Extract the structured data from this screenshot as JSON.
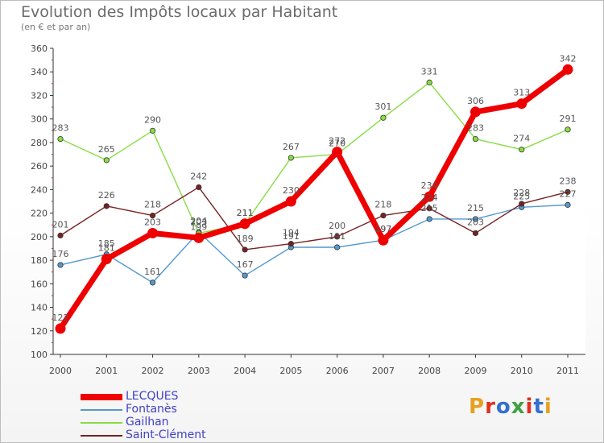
{
  "title": "Evolution des Impôts locaux par Habitant",
  "subtitle": "(en € et par an)",
  "logo": {
    "text": "Proxiti",
    "letter_colors": [
      "#e8a020",
      "#e03020",
      "#3070d0",
      "#40a040",
      "#e03020",
      "#3070d0",
      "#e8a020"
    ]
  },
  "chart_data": {
    "type": "line",
    "title": "Evolution des Impôts locaux par Habitant",
    "subtitle": "(en € et par an)",
    "xlabel": "",
    "ylabel": "",
    "x": [
      "2000",
      "2001",
      "2002",
      "2003",
      "2004",
      "2005",
      "2006",
      "2007",
      "2008",
      "2009",
      "2010",
      "2011"
    ],
    "ylim": [
      100,
      360
    ],
    "yticks": [
      100,
      120,
      140,
      160,
      180,
      200,
      220,
      240,
      260,
      280,
      300,
      320,
      340,
      360
    ],
    "grid": false,
    "legend_position": "bottom-left",
    "series": [
      {
        "name": "Fontanès",
        "color": "#5599cc",
        "values": [
          176,
          185,
          161,
          204,
          167,
          191,
          191,
          197,
          215,
          215,
          225,
          227
        ],
        "labels": [
          "176",
          "185",
          "161",
          "204",
          "167",
          "191",
          "191",
          "197",
          "215",
          "215",
          "225",
          "227"
        ]
      },
      {
        "name": "Gailhan",
        "color": "#88dd44",
        "values": [
          283,
          265,
          290,
          203,
          211,
          267,
          270,
          301,
          331,
          283,
          274,
          291
        ],
        "labels": [
          "283",
          "265",
          "290",
          "203",
          "211",
          "267",
          "270",
          "301",
          "331",
          "283",
          "274",
          "291"
        ]
      },
      {
        "name": "Saint-Clément",
        "color": "#772222",
        "values": [
          201,
          226,
          218,
          242,
          189,
          194,
          200,
          218,
          224,
          203,
          228,
          238
        ],
        "labels": [
          "201",
          "226",
          "218",
          "242",
          "189",
          "194",
          "200",
          "218",
          "224",
          "203",
          "228",
          "238"
        ]
      },
      {
        "name": "LECQUES",
        "color": "#ee0000",
        "values": [
          122,
          181,
          203,
          199,
          211,
          230,
          272,
          197,
          234,
          306,
          313,
          342
        ],
        "labels": [
          "122",
          "181",
          "203",
          "199",
          "211",
          "230",
          "272",
          "197",
          "234",
          "306",
          "313",
          "342"
        ]
      }
    ],
    "legend_order": [
      "LECQUES",
      "Fontanès",
      "Gailhan",
      "Saint-Clément"
    ]
  }
}
